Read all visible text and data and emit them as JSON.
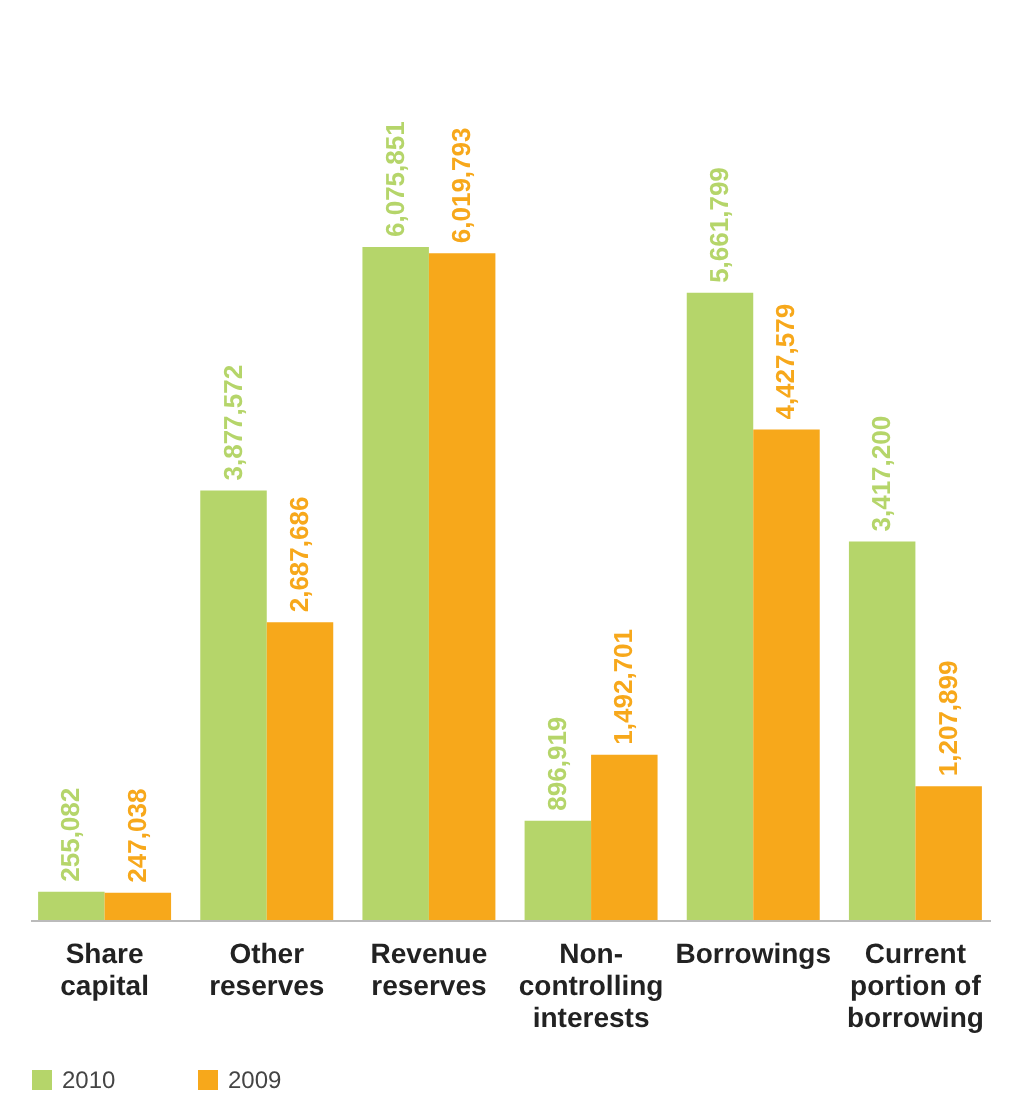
{
  "chart_data": {
    "type": "bar",
    "categories": [
      "Share\ncapital",
      "Other\nreserves",
      "Revenue\nreserves",
      "Non-\ncontrolling\ninterests",
      "Borrowings",
      "Current\nportion of\nborrowing"
    ],
    "series": [
      {
        "name": "2010",
        "color": "#b5d56a",
        "values": [
          255082,
          3877572,
          6075851,
          896919,
          5661799,
          3417200
        ],
        "value_labels": [
          "255,082",
          "3,877,572",
          "6,075,851",
          "896,919",
          "5,661,799",
          "3,417,200"
        ]
      },
      {
        "name": "2009",
        "color": "#f7a81b",
        "values": [
          247038,
          2687686,
          6019793,
          1492701,
          4427579,
          1207899
        ],
        "value_labels": [
          "247,038",
          "2,687,686",
          "6,019,793",
          "1,492,701",
          "4,427,579",
          "1,207,899"
        ]
      }
    ],
    "legend": "bottom left",
    "grid": false
  }
}
